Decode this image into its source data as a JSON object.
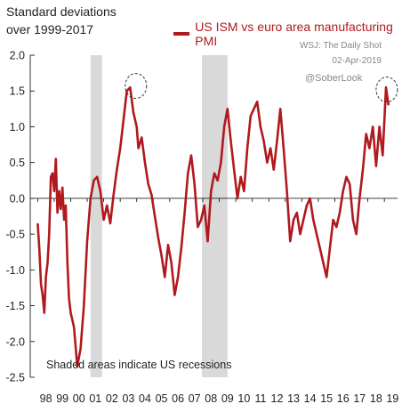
{
  "chart_data": {
    "type": "line",
    "title": "Standard deviations over 1999-2017",
    "subtitle_lines": [
      "Standard deviations",
      "over 1999-2017"
    ],
    "series": [
      {
        "name": "US ISM vs euro area manufacturing PMI",
        "color": "#b0191e",
        "x": [
          1998.0,
          1998.1,
          1998.2,
          1998.3,
          1998.4,
          1998.5,
          1998.6,
          1998.7,
          1998.8,
          1998.9,
          1999.0,
          1999.1,
          1999.2,
          1999.3,
          1999.4,
          1999.5,
          1999.6,
          1999.7,
          1999.8,
          1999.9,
          2000.0,
          2000.2,
          2000.4,
          2000.6,
          2000.8,
          2001.0,
          2001.2,
          2001.4,
          2001.6,
          2001.8,
          2002.0,
          2002.2,
          2002.4,
          2002.6,
          2002.8,
          2003.0,
          2003.2,
          2003.4,
          2003.6,
          2003.8,
          2004.0,
          2004.1,
          2004.3,
          2004.5,
          2004.7,
          2004.9,
          2005.1,
          2005.3,
          2005.5,
          2005.7,
          2005.9,
          2006.1,
          2006.3,
          2006.5,
          2006.7,
          2006.9,
          2007.1,
          2007.3,
          2007.5,
          2007.7,
          2007.9,
          2008.1,
          2008.3,
          2008.5,
          2008.7,
          2008.9,
          2009.1,
          2009.3,
          2009.5,
          2009.7,
          2009.9,
          2010.1,
          2010.3,
          2010.5,
          2010.7,
          2010.9,
          2011.1,
          2011.3,
          2011.5,
          2011.7,
          2011.9,
          2012.1,
          2012.3,
          2012.5,
          2012.7,
          2012.9,
          2013.1,
          2013.3,
          2013.5,
          2013.7,
          2013.9,
          2014.1,
          2014.3,
          2014.5,
          2014.7,
          2014.9,
          2015.1,
          2015.3,
          2015.5,
          2015.7,
          2015.9,
          2016.1,
          2016.3,
          2016.5,
          2016.7,
          2016.9,
          2017.1,
          2017.3,
          2017.5,
          2017.7,
          2017.9,
          2018.1,
          2018.3,
          2018.5,
          2018.7,
          2018.9,
          2019.1,
          2019.25
        ],
        "values": [
          -0.35,
          -0.7,
          -1.2,
          -1.35,
          -1.6,
          -1.1,
          -0.9,
          -0.5,
          0.3,
          0.35,
          0.1,
          0.55,
          -0.2,
          0.1,
          -0.15,
          0.15,
          -0.3,
          -0.1,
          -0.9,
          -1.4,
          -1.6,
          -1.8,
          -2.35,
          -2.1,
          -1.5,
          -0.6,
          0.0,
          0.25,
          0.3,
          0.1,
          -0.3,
          -0.1,
          -0.35,
          0.05,
          0.4,
          0.7,
          1.1,
          1.5,
          1.55,
          1.2,
          1.0,
          0.7,
          0.85,
          0.5,
          0.2,
          0.05,
          -0.25,
          -0.55,
          -0.8,
          -1.1,
          -0.65,
          -0.9,
          -1.35,
          -1.1,
          -0.7,
          -0.2,
          0.35,
          0.6,
          0.2,
          -0.4,
          -0.3,
          -0.1,
          -0.6,
          0.1,
          0.35,
          0.25,
          0.5,
          1.0,
          1.25,
          0.8,
          0.4,
          0.0,
          0.3,
          0.1,
          0.7,
          1.15,
          1.25,
          1.35,
          1.0,
          0.8,
          0.5,
          0.7,
          0.4,
          0.8,
          1.25,
          0.7,
          0.1,
          -0.6,
          -0.3,
          -0.2,
          -0.5,
          -0.3,
          -0.1,
          0.0,
          -0.3,
          -0.5,
          -0.7,
          -0.9,
          -1.1,
          -0.7,
          -0.3,
          -0.4,
          -0.2,
          0.1,
          0.3,
          0.2,
          -0.3,
          -0.5,
          0.0,
          0.4,
          0.9,
          0.7,
          1.0,
          0.45,
          1.0,
          0.6,
          1.55,
          1.3
        ],
        "annotations_circled": [
          {
            "x": 2003.95,
            "y": 1.57
          },
          {
            "x": 2019.15,
            "y": 1.52
          }
        ]
      }
    ],
    "recessions": [
      [
        2001.2,
        2001.9
      ],
      [
        2007.95,
        2009.5
      ]
    ],
    "x_ticks": [
      {
        "value": 1998,
        "label": "98"
      },
      {
        "value": 1999,
        "label": "99"
      },
      {
        "value": 2000,
        "label": "00"
      },
      {
        "value": 2001,
        "label": "01"
      },
      {
        "value": 2002,
        "label": "02"
      },
      {
        "value": 2003,
        "label": "03"
      },
      {
        "value": 2004,
        "label": "04"
      },
      {
        "value": 2005,
        "label": "05"
      },
      {
        "value": 2006,
        "label": "06"
      },
      {
        "value": 2007,
        "label": "07"
      },
      {
        "value": 2008,
        "label": "08"
      },
      {
        "value": 2009,
        "label": "09"
      },
      {
        "value": 2010,
        "label": "10"
      },
      {
        "value": 2011,
        "label": "11"
      },
      {
        "value": 2012,
        "label": "12"
      },
      {
        "value": 2013,
        "label": "13"
      },
      {
        "value": 2014,
        "label": "14"
      },
      {
        "value": 2015,
        "label": "15"
      },
      {
        "value": 2016,
        "label": "16"
      },
      {
        "value": 2017,
        "label": "17"
      },
      {
        "value": 2018,
        "label": "18"
      },
      {
        "value": 2019,
        "label": "19"
      }
    ],
    "y_ticks": [
      {
        "value": 2.0,
        "label": "2.0"
      },
      {
        "value": 1.5,
        "label": "1.5"
      },
      {
        "value": 1.0,
        "label": "1.0"
      },
      {
        "value": 0.5,
        "label": "0.5"
      },
      {
        "value": 0.0,
        "label": "0.0"
      },
      {
        "value": -0.5,
        "label": "-0.5"
      },
      {
        "value": -1.0,
        "label": "-1.0"
      },
      {
        "value": -1.5,
        "label": "-1.5"
      },
      {
        "value": -2.0,
        "label": "-2.0"
      },
      {
        "value": -2.5,
        "label": "-2.5"
      }
    ],
    "xlim": [
      1997.55,
      2019.8
    ],
    "ylim": [
      -2.5,
      2.0
    ],
    "grid": false,
    "legend": "top-right",
    "source_lines": [
      "WSJ: The Daily Shot",
      "02-Apr-2019",
      "@SoberLook"
    ],
    "note": "Shaded areas indicate US recessions"
  }
}
